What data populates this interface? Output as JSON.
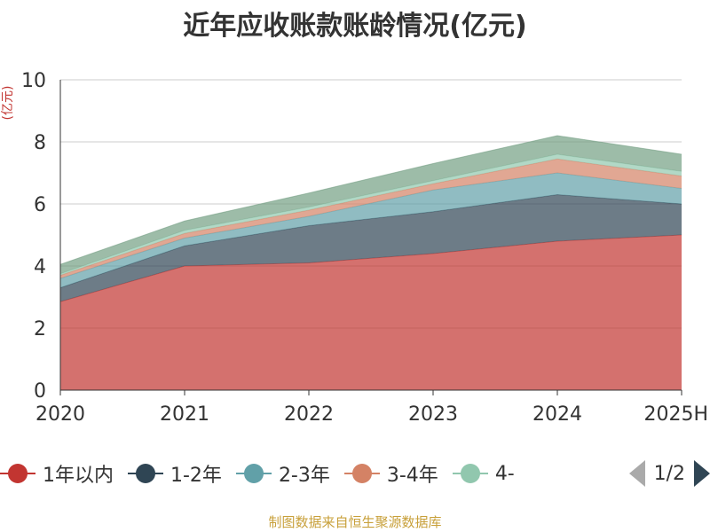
{
  "title": "近年应收账款账龄情况(亿元)",
  "footer": "制图数据来自恒生聚源数据库",
  "chart_data": {
    "type": "area",
    "stacked": true,
    "title": "近年应收账款账龄情况(亿元)",
    "ylabel": "(亿元)",
    "xlabel": "",
    "categories": [
      "2020",
      "2021",
      "2022",
      "2023",
      "2024",
      "2025H"
    ],
    "ylim": [
      0,
      10
    ],
    "yticks": [
      0,
      2,
      4,
      6,
      8,
      10
    ],
    "grid": true,
    "legend_position": "bottom",
    "series": [
      {
        "name": "1年以内",
        "color": "#c23531",
        "values": [
          2.85,
          4.0,
          4.1,
          4.4,
          4.8,
          5.0
        ]
      },
      {
        "name": "1-2年",
        "color": "#2f4554",
        "values": [
          0.45,
          0.65,
          1.2,
          1.35,
          1.5,
          1.0
        ]
      },
      {
        "name": "2-3年",
        "color": "#61a0a8",
        "values": [
          0.3,
          0.25,
          0.3,
          0.7,
          0.7,
          0.5
        ]
      },
      {
        "name": "3-4年",
        "color": "#d48265",
        "values": [
          0.1,
          0.15,
          0.2,
          0.2,
          0.45,
          0.4
        ]
      },
      {
        "name": "4-",
        "color": "#91c7ae",
        "values": [
          0.05,
          0.1,
          0.1,
          0.1,
          0.15,
          0.15
        ]
      },
      {
        "color": "#749f83",
        "values": [
          0.3,
          0.3,
          0.45,
          0.55,
          0.6,
          0.55
        ]
      }
    ]
  },
  "legend": {
    "items": [
      {
        "label": "1年以内",
        "color": "#c23531"
      },
      {
        "label": "1-2年",
        "color": "#2f4554"
      },
      {
        "label": "2-3年",
        "color": "#61a0a8"
      },
      {
        "label": "3-4年",
        "color": "#d48265"
      },
      {
        "label": "4-",
        "color": "#91c7ae"
      }
    ],
    "page": "1/2",
    "prev_icon": "triangle-left-icon",
    "next_icon": "triangle-right-icon"
  }
}
